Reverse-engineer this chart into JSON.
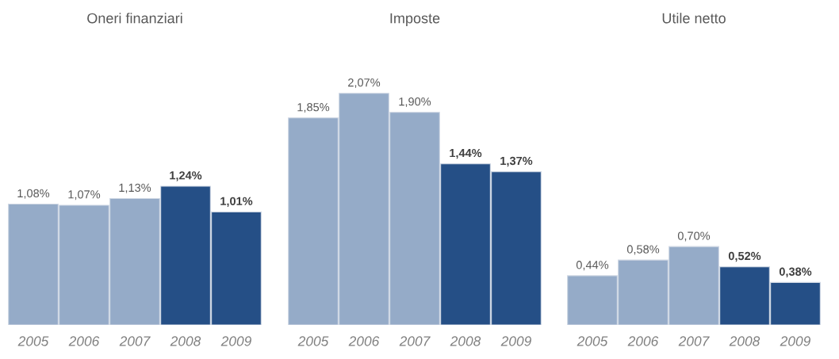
{
  "chart_data": [
    {
      "type": "bar",
      "title": "Oneri finanziari",
      "categories": [
        "2005",
        "2006",
        "2007",
        "2008",
        "2009"
      ],
      "values": [
        1.08,
        1.07,
        1.13,
        1.24,
        1.01
      ],
      "colors": [
        "#95abc8",
        "#95abc8",
        "#95abc8",
        "#254f86",
        "#254f86"
      ],
      "value_labels": [
        "1,08%",
        "1,07%",
        "1,13%",
        "1,24%",
        "1,01%"
      ]
    },
    {
      "type": "bar",
      "title": "Imposte",
      "categories": [
        "2005",
        "2006",
        "2007",
        "2008",
        "2009"
      ],
      "values": [
        1.85,
        2.07,
        1.9,
        1.44,
        1.37
      ],
      "colors": [
        "#95abc8",
        "#95abc8",
        "#95abc8",
        "#254f86",
        "#254f86"
      ],
      "value_labels": [
        "1,85%",
        "2,07%",
        "1,90%",
        "1,44%",
        "1,37%"
      ]
    },
    {
      "type": "bar",
      "title": "Utile netto",
      "categories": [
        "2005",
        "2006",
        "2007",
        "2008",
        "2009"
      ],
      "values": [
        0.44,
        0.58,
        0.7,
        0.52,
        0.38
      ],
      "colors": [
        "#95abc8",
        "#95abc8",
        "#95abc8",
        "#254f86",
        "#254f86"
      ],
      "value_labels": [
        "0,44%",
        "0,58%",
        "0,70%",
        "0,52%",
        "0,38%"
      ]
    }
  ]
}
